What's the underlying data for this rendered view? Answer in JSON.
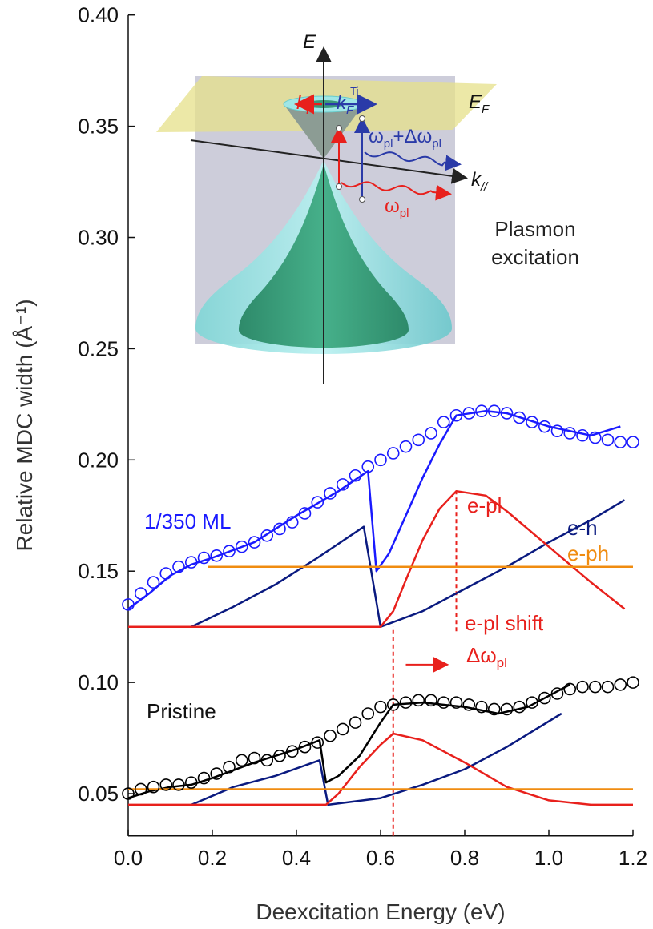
{
  "chart_data": {
    "type": "line",
    "x_label": "Deexcitation Energy (eV)",
    "y_label": "Relative MDC width (Å⁻¹)",
    "xlim": [
      0,
      1.2
    ],
    "ylim": [
      0.031,
      0.4
    ],
    "xticks": [
      {
        "value": 0,
        "label": "0.0"
      },
      0.2,
      0.4,
      0.6,
      0.8,
      {
        "value": 1,
        "label": "1.0"
      },
      1.2
    ],
    "yticks": [
      0.05,
      {
        "value": 0.1,
        "label": "0.10"
      },
      0.15,
      {
        "value": 0.2,
        "label": "0.20"
      },
      0.25,
      {
        "value": 0.3,
        "label": "0.30"
      },
      0.35,
      {
        "value": 0.4,
        "label": "0.40"
      }
    ],
    "series": [
      {
        "name": "1/350 ML",
        "color": "#1a1aff",
        "style": "markers",
        "x": [
          0,
          0.03,
          0.06,
          0.09,
          0.12,
          0.15,
          0.18,
          0.21,
          0.24,
          0.27,
          0.3,
          0.33,
          0.36,
          0.39,
          0.42,
          0.45,
          0.48,
          0.51,
          0.54,
          0.57,
          0.6,
          0.63,
          0.66,
          0.69,
          0.72,
          0.75,
          0.78,
          0.81,
          0.84,
          0.87,
          0.9,
          0.93,
          0.96,
          0.99,
          1.02,
          1.05,
          1.08,
          1.11,
          1.14,
          1.17,
          1.2
        ],
        "values": [
          0.135,
          0.14,
          0.145,
          0.149,
          0.152,
          0.154,
          0.156,
          0.157,
          0.159,
          0.161,
          0.163,
          0.166,
          0.169,
          0.172,
          0.176,
          0.181,
          0.185,
          0.189,
          0.193,
          0.197,
          0.2,
          0.203,
          0.206,
          0.209,
          0.212,
          0.217,
          0.22,
          0.221,
          0.222,
          0.222,
          0.221,
          0.219,
          0.217,
          0.215,
          0.213,
          0.212,
          0.211,
          0.21,
          0.209,
          0.208,
          0.208
        ]
      },
      {
        "color": "#1a1aff",
        "style": "line",
        "x": [
          0,
          0.05,
          0.1,
          0.15,
          0.2,
          0.3,
          0.4,
          0.5,
          0.57,
          0.59,
          0.62,
          0.66,
          0.7,
          0.74,
          0.78,
          0.85,
          0.9,
          1.0,
          1.1,
          1.17
        ],
        "values": [
          0.133,
          0.14,
          0.148,
          0.153,
          0.156,
          0.163,
          0.175,
          0.186,
          0.195,
          0.15,
          0.158,
          0.175,
          0.192,
          0.207,
          0.22,
          0.222,
          0.221,
          0.215,
          0.211,
          0.215
        ]
      },
      {
        "name": "e-h",
        "color": "#0a1a80",
        "style": "line",
        "x": [
          0.15,
          0.25,
          0.35,
          0.45,
          0.56,
          0.6,
          0.7,
          0.8,
          0.9,
          1.0,
          1.1,
          1.18
        ],
        "values": [
          0.125,
          0.134,
          0.144,
          0.156,
          0.17,
          0.125,
          0.132,
          0.142,
          0.152,
          0.163,
          0.173,
          0.182
        ]
      },
      {
        "name": "e-pl",
        "color": "#e8201c",
        "style": "line",
        "x": [
          0,
          0.6,
          0.63,
          0.66,
          0.7,
          0.74,
          0.78,
          0.85,
          0.9,
          1.0,
          1.1,
          1.18
        ],
        "values": [
          0.125,
          0.125,
          0.132,
          0.146,
          0.164,
          0.178,
          0.186,
          0.184,
          0.177,
          0.161,
          0.145,
          0.133
        ]
      },
      {
        "name": "e-ph",
        "color": "#f08c10",
        "style": "line",
        "x": [
          0.19,
          1.2
        ],
        "values": [
          0.152,
          0.152
        ]
      },
      {
        "name": "Pristine",
        "color": "#000000",
        "style": "markers",
        "x": [
          0,
          0.03,
          0.06,
          0.09,
          0.12,
          0.15,
          0.18,
          0.21,
          0.24,
          0.27,
          0.3,
          0.33,
          0.36,
          0.39,
          0.42,
          0.45,
          0.48,
          0.51,
          0.54,
          0.57,
          0.6,
          0.63,
          0.66,
          0.69,
          0.72,
          0.75,
          0.78,
          0.81,
          0.84,
          0.87,
          0.9,
          0.93,
          0.96,
          0.99,
          1.02,
          1.05,
          1.08,
          1.11,
          1.14,
          1.17,
          1.2
        ],
        "values": [
          0.05,
          0.052,
          0.053,
          0.054,
          0.054,
          0.055,
          0.057,
          0.059,
          0.062,
          0.065,
          0.066,
          0.065,
          0.067,
          0.069,
          0.071,
          0.073,
          0.076,
          0.079,
          0.082,
          0.086,
          0.089,
          0.09,
          0.091,
          0.092,
          0.092,
          0.091,
          0.091,
          0.09,
          0.089,
          0.088,
          0.088,
          0.089,
          0.091,
          0.093,
          0.095,
          0.097,
          0.098,
          0.098,
          0.098,
          0.099,
          0.1
        ]
      },
      {
        "color": "#000000",
        "style": "line",
        "x": [
          0,
          0.05,
          0.1,
          0.15,
          0.2,
          0.3,
          0.4,
          0.455,
          0.47,
          0.5,
          0.55,
          0.6,
          0.63,
          0.7,
          0.8,
          0.88,
          0.95,
          1.0,
          1.05
        ],
        "values": [
          0.048,
          0.051,
          0.053,
          0.054,
          0.057,
          0.064,
          0.07,
          0.074,
          0.055,
          0.058,
          0.067,
          0.082,
          0.09,
          0.091,
          0.089,
          0.086,
          0.089,
          0.094,
          0.099
        ]
      },
      {
        "color": "#0a1a80",
        "style": "line",
        "x": [
          0.15,
          0.25,
          0.35,
          0.455,
          0.475,
          0.6,
          0.7,
          0.8,
          0.9,
          1.03
        ],
        "values": [
          0.045,
          0.053,
          0.058,
          0.065,
          0.045,
          0.048,
          0.054,
          0.061,
          0.071,
          0.086
        ]
      },
      {
        "color": "#e8201c",
        "style": "line",
        "x": [
          0,
          0.47,
          0.5,
          0.55,
          0.6,
          0.63,
          0.7,
          0.8,
          0.9,
          1.0,
          1.1,
          1.2
        ],
        "values": [
          0.045,
          0.045,
          0.05,
          0.062,
          0.072,
          0.077,
          0.074,
          0.064,
          0.053,
          0.047,
          0.045,
          0.045
        ]
      },
      {
        "color": "#f08c10",
        "style": "line",
        "x": [
          0,
          1.2
        ],
        "values": [
          0.052,
          0.052
        ]
      }
    ],
    "guides": [
      {
        "x": 0.78,
        "y": [
          0.123,
          0.186
        ],
        "color": "#e8201c"
      },
      {
        "x": 0.63,
        "y": [
          0.031,
          0.125
        ],
        "color": "#e8201c"
      }
    ],
    "shift_arrow": {
      "x": [
        0.66,
        0.755
      ],
      "y": 0.108,
      "color": "#e8201c"
    },
    "annotations": {
      "shift": "e-pl shift",
      "delta": [
        "Δω",
        "pl"
      ]
    }
  },
  "inset": {
    "energy_axis": "E",
    "fermi_level": [
      "E",
      "F"
    ],
    "kf": [
      "k",
      "F"
    ],
    "kf_ti": [
      "k",
      "F",
      "Ti"
    ],
    "shifted_plasmon": [
      "ω",
      "pl",
      "+Δω",
      "pl"
    ],
    "momentum_axis": [
      "k",
      "//"
    ],
    "plasmon": [
      "ω",
      "pl"
    ],
    "caption": [
      "Plasmon",
      "excitation"
    ]
  }
}
